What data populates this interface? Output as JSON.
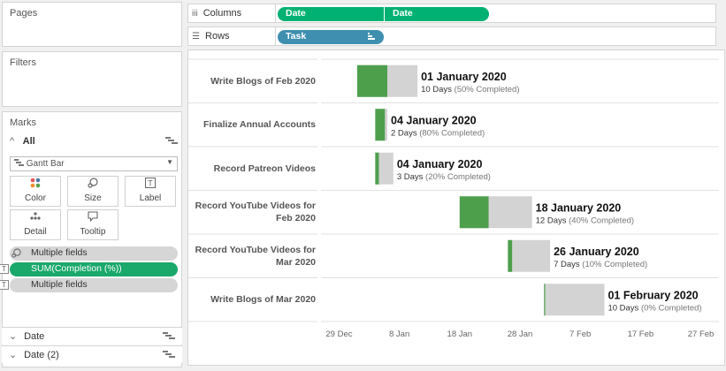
{
  "left_panel": {
    "pages_title": "Pages",
    "filters_title": "Filters",
    "marks_title": "Marks",
    "marks_all": "All",
    "mark_type": "Gantt Bar",
    "cards": [
      {
        "label": "Color",
        "icon": "color-icon"
      },
      {
        "label": "Size",
        "icon": "size-icon"
      },
      {
        "label": "Label",
        "icon": "label-icon"
      },
      {
        "label": "Detail",
        "icon": "detail-icon"
      },
      {
        "label": "Tooltip",
        "icon": "tooltip-icon"
      }
    ],
    "mark_pills": [
      {
        "label": "Multiple fields",
        "icon": "size-icon",
        "style": "gray"
      },
      {
        "label": "SUM(Completion (%))",
        "icon": "label-icon",
        "style": "green"
      },
      {
        "label": "Multiple fields",
        "icon": "label-icon",
        "style": "gray"
      }
    ],
    "sections": [
      "Date",
      "Date (2)"
    ]
  },
  "shelves": {
    "columns_label": "Columns",
    "columns_pills": [
      "Date",
      "Date"
    ],
    "rows_label": "Rows",
    "rows_pills": [
      "Task"
    ]
  },
  "colors": {
    "green_pill": "#00b174",
    "blue_pill": "#3e8fb0",
    "bar_completed": "#4e9f4c",
    "bar_remaining": "#d3d3d3"
  },
  "chart_data": {
    "type": "gantt",
    "x_axis": {
      "type": "date",
      "ticks": [
        "29 Dec",
        "8 Jan",
        "18 Jan",
        "28 Jan",
        "7 Feb",
        "17 Feb",
        "27 Feb"
      ],
      "range": [
        "2019-12-26",
        "2020-03-01"
      ]
    },
    "tasks": [
      {
        "task": "Write Blogs of Feb 2020",
        "start": "2020-01-01",
        "duration_days": 10,
        "completion_pct": 50,
        "date_label": "01 January 2020",
        "detail_label": "10 Days",
        "pct_label": "(50% Completed)"
      },
      {
        "task": "Finalize Annual Accounts",
        "start": "2020-01-04",
        "duration_days": 2,
        "completion_pct": 80,
        "date_label": "04 January 2020",
        "detail_label": "2 Days",
        "pct_label": "(80% Completed)"
      },
      {
        "task": "Record Patreon Videos",
        "start": "2020-01-04",
        "duration_days": 3,
        "completion_pct": 20,
        "date_label": "04 January 2020",
        "detail_label": "3 Days",
        "pct_label": "(20% Completed)"
      },
      {
        "task": "Record YouTube Videos for Feb 2020",
        "start": "2020-01-18",
        "duration_days": 12,
        "completion_pct": 40,
        "date_label": "18 January 2020",
        "detail_label": "12 Days",
        "pct_label": "(40% Completed)"
      },
      {
        "task": "Record YouTube Videos for Mar 2020",
        "start": "2020-01-26",
        "duration_days": 7,
        "completion_pct": 10,
        "date_label": "26 January 2020",
        "detail_label": "7 Days",
        "pct_label": "(10% Completed)"
      },
      {
        "task": "Write Blogs of Mar 2020",
        "start": "2020-02-01",
        "duration_days": 10,
        "completion_pct": 0,
        "date_label": "01 February 2020",
        "detail_label": "10 Days",
        "pct_label": "(0% Completed)"
      }
    ]
  }
}
